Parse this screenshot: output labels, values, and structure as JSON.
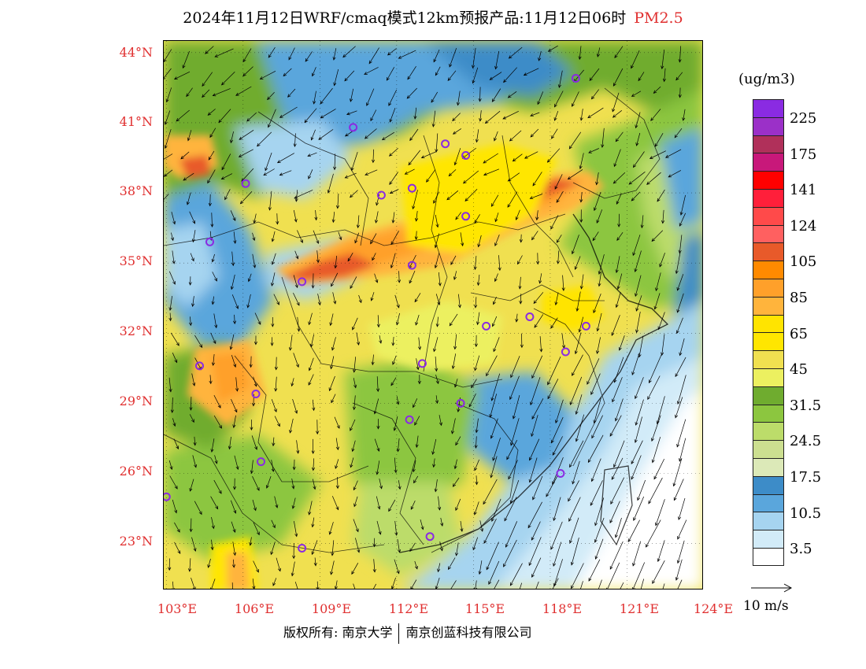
{
  "title": {
    "main": "2024年11月12日WRF/cmaq模式12km预报产品:11月12日06时",
    "pollutant": "PM2.5"
  },
  "colors": {
    "axis_label": "#e03030",
    "pollutant_title": "#e03030"
  },
  "map": {
    "lat_labels": [
      "44°N",
      "41°N",
      "38°N",
      "35°N",
      "32°N",
      "29°N",
      "26°N",
      "23°N"
    ],
    "lon_labels": [
      "103°E",
      "106°E",
      "109°E",
      "112°E",
      "115°E",
      "118°E",
      "121°E",
      "124°E"
    ],
    "lon_range": [
      102.9,
      124
    ],
    "lat_range": [
      21.0,
      44.5
    ],
    "field": "PM2.5 concentration with 10 m wind vectors",
    "station_icon": "purple-circle-icon"
  },
  "legend": {
    "unit": "(ug/m3)",
    "labels": [
      "225",
      "175",
      "141",
      "124",
      "105",
      "85",
      "65",
      "45",
      "31.5",
      "24.5",
      "17.5",
      "10.5",
      "3.5"
    ],
    "colors": [
      "#8a2be2",
      "#9b30c8",
      "#b0305a",
      "#c8187a",
      "#ff0000",
      "#ff1f3a",
      "#ff4a4a",
      "#ff6060",
      "#e85a2a",
      "#ff8a00",
      "#ffa02a",
      "#ffb43c",
      "#ffe400",
      "#ffe600",
      "#f0e050",
      "#ecf060",
      "#6fac2f",
      "#8cc63f",
      "#bcdc6a",
      "#ccdf90",
      "#dce9b8",
      "#3d8cc8",
      "#5aa6dc",
      "#a6d4f0",
      "#d2ebf8",
      "#ffffff"
    ]
  },
  "wind_reference": {
    "label": "10 m/s"
  },
  "footer": {
    "copyright": "版权所有: 南京大学",
    "company": "南京创蓝科技有限公司"
  }
}
